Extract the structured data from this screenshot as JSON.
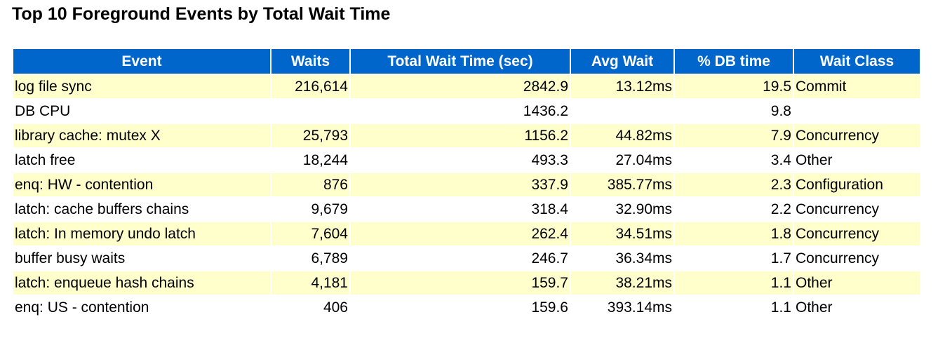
{
  "title": "Top 10 Foreground Events by Total Wait Time",
  "columns": [
    "Event",
    "Waits",
    "Total Wait Time (sec)",
    "Avg Wait",
    "% DB time",
    "Wait Class"
  ],
  "rows": [
    {
      "event": "log file sync",
      "waits": "216,614",
      "total_wait_time": "2842.9",
      "avg_wait": "13.12ms",
      "pct_db_time": "19.5",
      "wait_class": "Commit"
    },
    {
      "event": "DB CPU",
      "waits": "",
      "total_wait_time": "1436.2",
      "avg_wait": "",
      "pct_db_time": "9.8",
      "wait_class": ""
    },
    {
      "event": "library cache: mutex X",
      "waits": "25,793",
      "total_wait_time": "1156.2",
      "avg_wait": "44.82ms",
      "pct_db_time": "7.9",
      "wait_class": "Concurrency"
    },
    {
      "event": "latch free",
      "waits": "18,244",
      "total_wait_time": "493.3",
      "avg_wait": "27.04ms",
      "pct_db_time": "3.4",
      "wait_class": "Other"
    },
    {
      "event": "enq: HW - contention",
      "waits": "876",
      "total_wait_time": "337.9",
      "avg_wait": "385.77ms",
      "pct_db_time": "2.3",
      "wait_class": "Configuration"
    },
    {
      "event": "latch: cache buffers chains",
      "waits": "9,679",
      "total_wait_time": "318.4",
      "avg_wait": "32.90ms",
      "pct_db_time": "2.2",
      "wait_class": "Concurrency"
    },
    {
      "event": "latch: In memory undo latch",
      "waits": "7,604",
      "total_wait_time": "262.4",
      "avg_wait": "34.51ms",
      "pct_db_time": "1.8",
      "wait_class": "Concurrency"
    },
    {
      "event": "buffer busy waits",
      "waits": "6,789",
      "total_wait_time": "246.7",
      "avg_wait": "36.34ms",
      "pct_db_time": "1.7",
      "wait_class": "Concurrency"
    },
    {
      "event": "latch: enqueue hash chains",
      "waits": "4,181",
      "total_wait_time": "159.7",
      "avg_wait": "38.21ms",
      "pct_db_time": "1.1",
      "wait_class": "Other"
    },
    {
      "event": "enq: US - contention",
      "waits": "406",
      "total_wait_time": "159.6",
      "avg_wait": "393.14ms",
      "pct_db_time": "1.1",
      "wait_class": "Other"
    }
  ],
  "colors": {
    "header_bg": "#0066cc",
    "header_text": "#ffffff",
    "row_alt_bg": "#ffffcc",
    "row_bg": "#ffffff"
  }
}
